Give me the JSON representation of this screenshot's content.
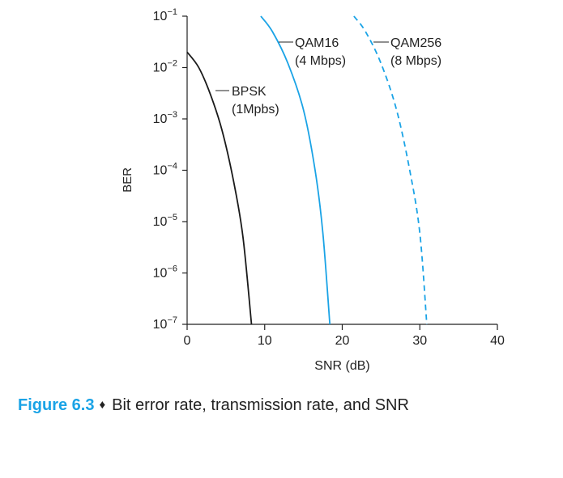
{
  "chart_data": {
    "type": "line",
    "xlabel": "SNR (dB)",
    "ylabel": "BER",
    "xlim": [
      0,
      40
    ],
    "ylim_log10": [
      -7,
      -1
    ],
    "y_scale": "log",
    "x_ticks": [
      0,
      10,
      20,
      30,
      40
    ],
    "y_ticks": [
      {
        "exp": -1,
        "base": "10",
        "sup": "−1"
      },
      {
        "exp": -2,
        "base": "10",
        "sup": "−2"
      },
      {
        "exp": -3,
        "base": "10",
        "sup": "−3"
      },
      {
        "exp": -4,
        "base": "10",
        "sup": "−4"
      },
      {
        "exp": -5,
        "base": "10",
        "sup": "−5"
      },
      {
        "exp": -6,
        "base": "10",
        "sup": "−6"
      },
      {
        "exp": -7,
        "base": "10",
        "sup": "−7"
      }
    ],
    "grid": false,
    "legend": "inline labels",
    "series": [
      {
        "name": "BPSK (1Mpbs)",
        "label_lines": [
          "BPSK",
          "(1Mpbs)"
        ],
        "color": "#1a1a1a",
        "dash": "solid",
        "points": [
          [
            0,
            0.02
          ],
          [
            1.5,
            0.01
          ],
          [
            3,
            0.003
          ],
          [
            4.5,
            0.0006
          ],
          [
            6,
            6e-05
          ],
          [
            7.2,
            5e-06
          ],
          [
            8.3,
            1e-07
          ]
        ]
      },
      {
        "name": "QAM16 (4 Mbps)",
        "label_lines": [
          "QAM16",
          "(4 Mbps)"
        ],
        "color": "#1aa3e6",
        "dash": "solid",
        "points": [
          [
            9.5,
            0.1
          ],
          [
            11,
            0.05
          ],
          [
            13,
            0.012
          ],
          [
            15,
            0.0015
          ],
          [
            16.5,
            0.0001
          ],
          [
            17.5,
            6e-06
          ],
          [
            18.4,
            1e-07
          ]
        ]
      },
      {
        "name": "QAM256 (8 Mbps)",
        "label_lines": [
          "QAM256",
          "(8 Mbps)"
        ],
        "color": "#1aa3e6",
        "dash": "dashed",
        "points": [
          [
            21.5,
            0.1
          ],
          [
            23,
            0.05
          ],
          [
            25,
            0.012
          ],
          [
            27,
            0.0015
          ],
          [
            28.7,
            0.0001
          ],
          [
            30,
            6e-06
          ],
          [
            30.9,
            1e-07
          ]
        ]
      }
    ]
  },
  "caption": {
    "figure_number": "Figure 6.3",
    "symbol": "♦",
    "text": "Bit error rate, transmission rate, and SNR",
    "number_color": "#1aa3e6"
  }
}
